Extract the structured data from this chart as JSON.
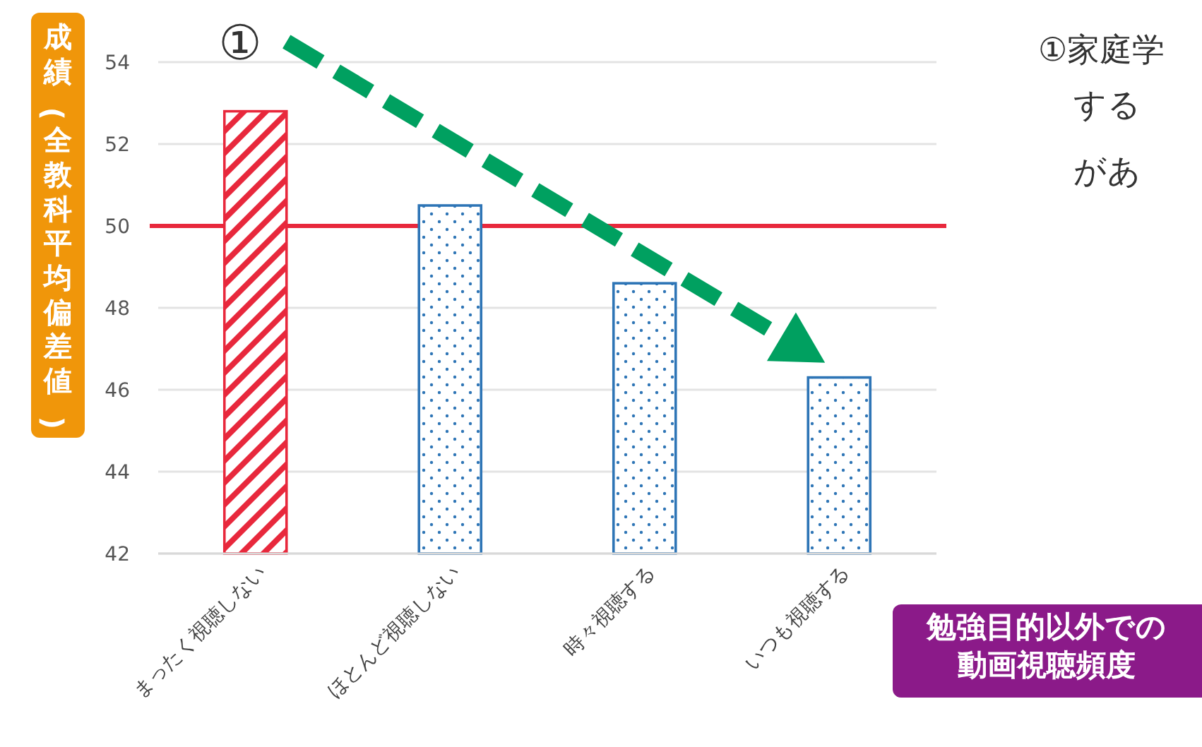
{
  "chart_data": {
    "type": "bar",
    "ylabel": "成績(全教科平均偏差値)",
    "xlabel": "勉強目的以外での動画視聴頻度",
    "categories": [
      "まったく視聴しない",
      "ほとんど視聴しない",
      "時々視聴する",
      "いつも視聴する"
    ],
    "values": [
      52.8,
      50.5,
      48.6,
      46.3
    ],
    "colors": [
      "#e8283c",
      "#2e75b6",
      "#2e75b6",
      "#2e75b6"
    ],
    "ylim": [
      42,
      54
    ],
    "yticks": [
      42,
      44,
      46,
      48,
      50,
      52,
      54
    ],
    "grid": "y",
    "ref_lines": [
      {
        "axis": "y",
        "value": 50,
        "color": "#e8283c"
      }
    ],
    "annotations": [
      "①",
      "①家庭学",
      "する",
      "があ"
    ]
  }
}
